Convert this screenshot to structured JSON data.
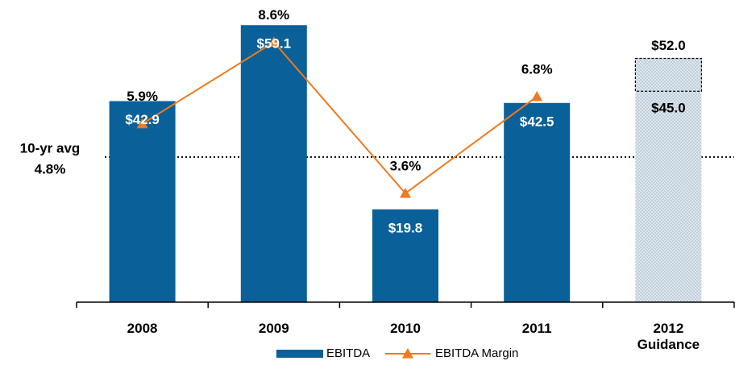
{
  "chart_data": {
    "type": "bar",
    "categories": [
      "2008",
      "2009",
      "2010",
      "2011",
      "2012 Guidance"
    ],
    "series": [
      {
        "name": "EBITDA",
        "color": "#0a6098",
        "values": [
          42.9,
          59.1,
          19.8,
          42.5,
          null
        ],
        "value_labels": [
          "$42.9",
          "$59.1",
          "$19.8",
          "$42.5",
          null
        ]
      },
      {
        "name": "EBITDA Margin",
        "color": "#f07a1e",
        "axis": "y2",
        "values": [
          5.9,
          8.6,
          3.6,
          6.8,
          null
        ],
        "value_labels": [
          "5.9%",
          "8.6%",
          "3.6%",
          "6.8%",
          null
        ]
      }
    ],
    "guidance_range": [
      45.0,
      52.0
    ],
    "guidance_range_labels": [
      "$45.0",
      "$52.0"
    ],
    "average": {
      "text": "10-yr avg",
      "value": 4.8,
      "label": "4.8%"
    },
    "ylim": [
      0,
      60
    ],
    "y2lim": [
      0,
      9.3
    ],
    "legend": "bottom"
  }
}
